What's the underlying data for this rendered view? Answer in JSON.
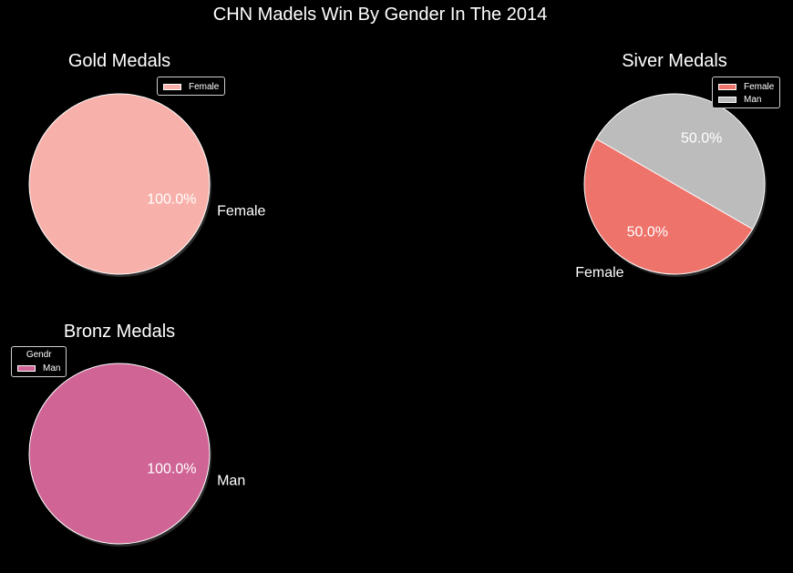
{
  "suptitle": "CHN Madels Win By Gender In The 2014",
  "chart_data": [
    {
      "type": "pie",
      "title": "Gold Medals",
      "labels": [
        "Female"
      ],
      "values": [
        1
      ],
      "pct_labels": [
        "100.0%"
      ],
      "colors": [
        "#f8b1aa"
      ],
      "legend": {
        "title": "",
        "entries": [
          "Female"
        ],
        "placement": "top-right"
      }
    },
    {
      "type": "pie",
      "title": "Siver Medals",
      "labels": [
        "Female",
        "Man"
      ],
      "values": [
        1,
        1
      ],
      "pct_labels": [
        "50.0%",
        "50.0%"
      ],
      "colors": [
        "#ee736b",
        "#bcbcbc"
      ],
      "legend": {
        "title": "",
        "entries": [
          "Female",
          "Man"
        ],
        "placement": "top-right"
      }
    },
    {
      "type": "pie",
      "title": "Bronz Medals",
      "labels": [
        "Man"
      ],
      "values": [
        1
      ],
      "pct_labels": [
        "100.0%"
      ],
      "colors": [
        "#cf6495"
      ],
      "legend": {
        "title": "Gendr",
        "entries": [
          "Man"
        ],
        "placement": "top-left"
      }
    }
  ]
}
